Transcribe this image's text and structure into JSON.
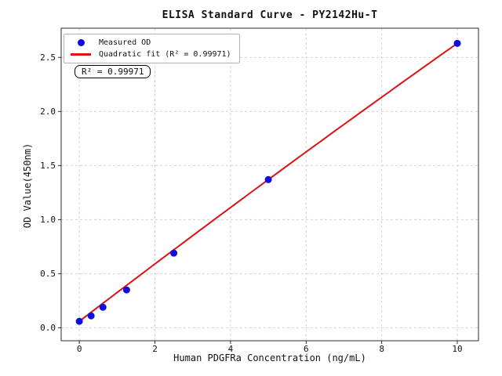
{
  "title": "ELISA Standard Curve - PY2142Hu-T",
  "annotation": {
    "text": "R² = 0.99971"
  },
  "legend": {
    "position": "upper left",
    "items": [
      {
        "label": "Measured OD",
        "marker": "dot",
        "color": "#0d0de0"
      },
      {
        "label": "Quadratic fit (R² = 0.99971)",
        "marker": "line",
        "color": "#dd1111"
      }
    ]
  },
  "chart_data": {
    "type": "scatter",
    "title": "ELISA Standard Curve - PY2142Hu-T",
    "xlabel": "Human PDGFRa Concentration (ng/mL)",
    "ylabel": "OD Value(450nm)",
    "x_ticks": [
      0,
      2,
      4,
      6,
      8,
      10
    ],
    "y_ticks": [
      "0.0",
      "0.5",
      "1.0",
      "1.5",
      "2.0",
      "2.5"
    ],
    "xlim": [
      -0.48,
      10.56
    ],
    "ylim": [
      -0.12,
      2.77
    ],
    "grid": true,
    "legend_position": "upper left",
    "series": [
      {
        "name": "Measured OD",
        "type": "scatter",
        "color": "#0d0de0",
        "x": [
          0,
          0.3125,
          0.625,
          1.25,
          2.5,
          5,
          10
        ],
        "y": [
          0.06,
          0.11,
          0.19,
          0.35,
          0.69,
          1.37,
          2.63
        ]
      },
      {
        "name": "Quadratic fit (R² = 0.99971)",
        "type": "line",
        "color": "#dd1111",
        "r_squared": 0.99971,
        "fit_coefficients": {
          "a": 0.06,
          "b": 0.267,
          "c": -0.001
        },
        "x_range": [
          0,
          10
        ]
      }
    ]
  },
  "colors": {
    "point": "#0d0de0",
    "fit_line": "#dd1111",
    "grid": "#cfcfcf",
    "spine": "#2b2b2b",
    "background": "#ffffff"
  }
}
